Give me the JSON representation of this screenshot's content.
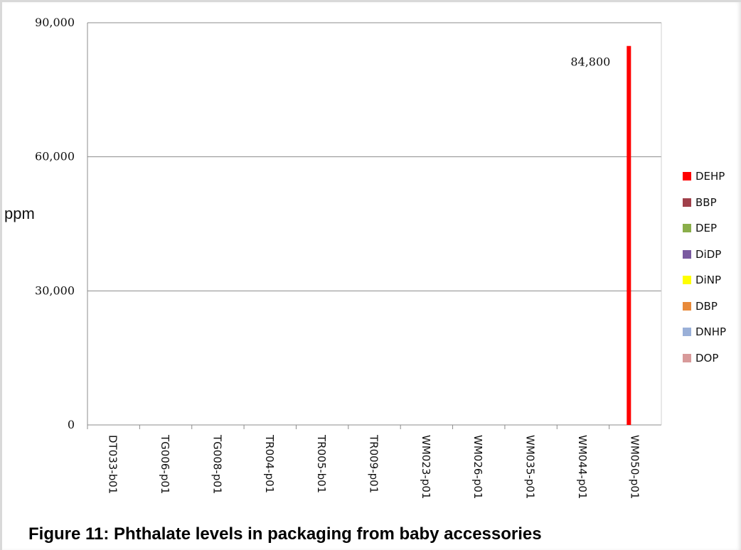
{
  "caption": "Figure 11: Phthalate levels in packaging from baby accessories",
  "chart_data": {
    "type": "bar",
    "title": "",
    "xlabel": "",
    "ylabel": "ppm",
    "ylim": [
      0,
      90000
    ],
    "yticks": [
      "0",
      "30,000",
      "60,000",
      "90,000"
    ],
    "ytick_values": [
      0,
      30000,
      60000,
      90000
    ],
    "grid": true,
    "legend_position": "right",
    "categories": [
      "DT033-b01",
      "TG006-p01",
      "TG008-p01",
      "TR004-p01",
      "TR005-b01",
      "TR009-p01",
      "WM023-p01",
      "WM026-p01",
      "WM035-p01",
      "WM044-p01",
      "WM050-p01"
    ],
    "series": [
      {
        "name": "DEHP",
        "color": "#ff0000",
        "values": [
          0,
          0,
          0,
          0,
          0,
          0,
          0,
          0,
          0,
          0,
          84800
        ]
      },
      {
        "name": "BBP",
        "color": "#a0404a",
        "values": [
          0,
          0,
          0,
          0,
          0,
          0,
          0,
          0,
          0,
          0,
          0
        ]
      },
      {
        "name": "DEP",
        "color": "#8aae4a",
        "values": [
          0,
          0,
          0,
          0,
          0,
          0,
          0,
          0,
          0,
          0,
          0
        ]
      },
      {
        "name": "DiDP",
        "color": "#7a5aa0",
        "values": [
          0,
          0,
          0,
          0,
          0,
          0,
          0,
          0,
          0,
          0,
          0
        ]
      },
      {
        "name": "DiNP",
        "color": "#ffff00",
        "values": [
          0,
          0,
          0,
          0,
          0,
          0,
          0,
          0,
          0,
          0,
          0
        ]
      },
      {
        "name": "DBP",
        "color": "#e88a3a",
        "values": [
          0,
          0,
          0,
          0,
          0,
          0,
          0,
          0,
          0,
          0,
          0
        ]
      },
      {
        "name": "DNHP",
        "color": "#9ab0d8",
        "values": [
          0,
          0,
          0,
          0,
          0,
          0,
          0,
          0,
          0,
          0,
          0
        ]
      },
      {
        "name": "DOP",
        "color": "#d89a9a",
        "values": [
          0,
          0,
          0,
          0,
          0,
          0,
          0,
          0,
          0,
          0,
          0
        ]
      }
    ],
    "annotations": [
      {
        "category": "WM050-p01",
        "series": "DEHP",
        "text": "84,800"
      }
    ]
  }
}
